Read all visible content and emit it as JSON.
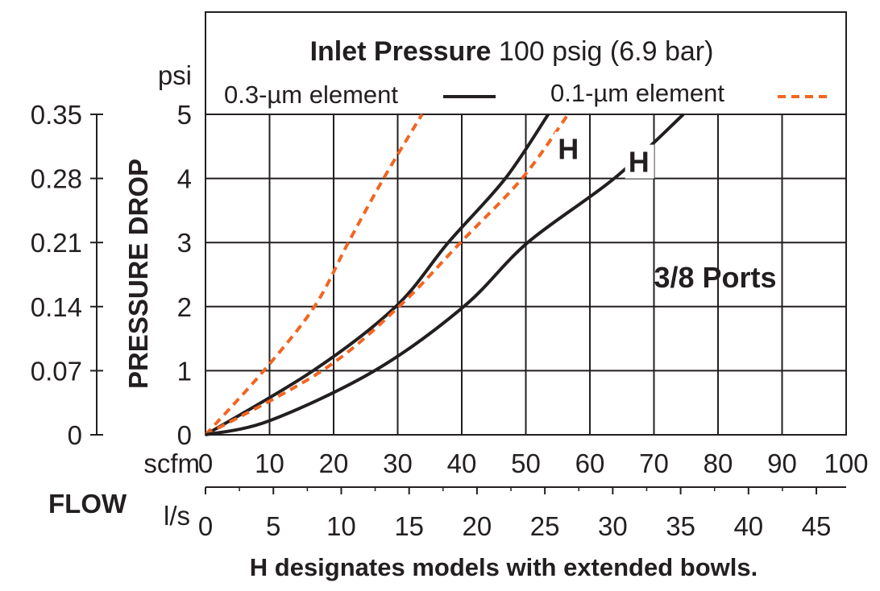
{
  "chart_data": {
    "type": "line",
    "title_bold": "Inlet Pressure",
    "title_rest": " 100 psig (6.9 bar)",
    "ylabel": "PRESSURE DROP",
    "y_unit_psi": "psi",
    "x_unit_scfm": "scfm",
    "x_unit_ls": "l/s",
    "xlabel": "FLOW",
    "footnote": "H designates models with extended bowls.",
    "xlim": [
      0,
      100
    ],
    "ylim": [
      0,
      5
    ],
    "grid": true,
    "legend_position": "top",
    "x_ticks_scfm": [
      "0",
      "10",
      "20",
      "30",
      "40",
      "50",
      "60",
      "70",
      "80",
      "90",
      "100"
    ],
    "x_ticks_ls": [
      "0",
      "5",
      "10",
      "15",
      "20",
      "25",
      "30",
      "35",
      "40",
      "45"
    ],
    "y_ticks_psi": [
      "0",
      "1",
      "2",
      "3",
      "4",
      "5"
    ],
    "y_ticks_bar": [
      "0",
      "0.07",
      "0.14",
      "0.21",
      "0.28",
      "0.35"
    ],
    "legend": [
      {
        "label": "0.3-µm element",
        "color": "#231f20",
        "style": "solid"
      },
      {
        "label": "0.1-µm element",
        "color": "#f26522",
        "style": "dashed"
      }
    ],
    "series": [
      {
        "element": "0.1-µm",
        "color": "#f26522",
        "style": "dashed",
        "points": [
          [
            0,
            0
          ],
          [
            9.1,
            1
          ],
          [
            17,
            2
          ],
          [
            22.3,
            3
          ],
          [
            27.8,
            4
          ],
          [
            33.8,
            5
          ]
        ]
      },
      {
        "element": "0.3-µm",
        "color": "#231f20",
        "style": "solid",
        "annotation": "H",
        "points": [
          [
            0,
            0
          ],
          [
            16.8,
            1
          ],
          [
            29.7,
            2
          ],
          [
            37.9,
            3
          ],
          [
            46.8,
            4
          ],
          [
            53.5,
            5
          ]
        ]
      },
      {
        "element": "0.1-µm",
        "color": "#f26522",
        "style": "dashed",
        "points": [
          [
            0,
            0
          ],
          [
            18.2,
            1
          ],
          [
            30.2,
            2
          ],
          [
            39.8,
            3
          ],
          [
            49.4,
            4
          ],
          [
            56.6,
            5
          ]
        ]
      },
      {
        "element": "0.3-µm",
        "color": "#231f20",
        "style": "solid",
        "annotation": "H",
        "points": [
          [
            0,
            0
          ],
          [
            10,
            0.22
          ],
          [
            26.4,
            1
          ],
          [
            40.3,
            2
          ],
          [
            50.3,
            3
          ],
          [
            63.8,
            4
          ],
          [
            74.6,
            5
          ]
        ]
      }
    ],
    "annotations": [
      {
        "text": "H",
        "x": 55,
        "y": 4.3
      },
      {
        "text": "H",
        "x": 66,
        "y": 4.1
      },
      {
        "text": "3/8 Ports",
        "x": 70,
        "y": 2.3
      }
    ]
  }
}
